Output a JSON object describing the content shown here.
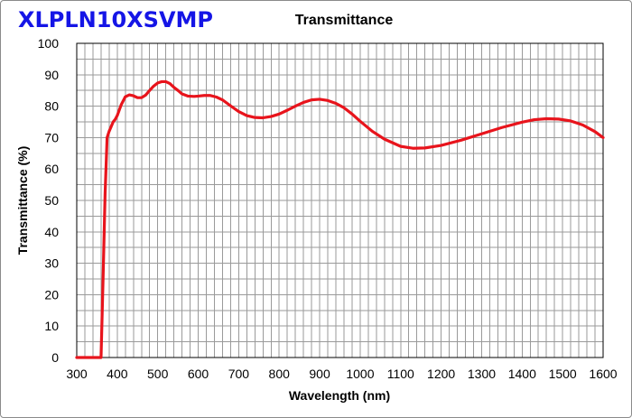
{
  "product_name": "XLPLN10XSVMP",
  "colors": {
    "product_name": "#1515e6",
    "series": "#e8141c",
    "grid": "#9a9a9a",
    "axis": "#000000"
  },
  "chart_data": {
    "type": "line",
    "title": "Transmittance",
    "xlabel": "Wavelength (nm)",
    "ylabel": "Transmittance (%)",
    "xlim": [
      300,
      1600
    ],
    "ylim": [
      0,
      100
    ],
    "xticks": [
      300,
      400,
      500,
      600,
      700,
      800,
      900,
      1000,
      1100,
      1200,
      1300,
      1400,
      1500,
      1600
    ],
    "yticks": [
      0,
      10,
      20,
      30,
      40,
      50,
      60,
      70,
      80,
      90,
      100
    ],
    "x_minor_step": 20,
    "y_minor_step": 5,
    "grid": true,
    "legend": "none",
    "series": [
      {
        "x": [
          300,
          360,
          365,
          370,
          375,
          380,
          385,
          390,
          395,
          400,
          410,
          420,
          430,
          440,
          450,
          460,
          470,
          480,
          490,
          500,
          510,
          520,
          530,
          540,
          550,
          560,
          575,
          590,
          600,
          615,
          630,
          645,
          660,
          680,
          700,
          720,
          740,
          760,
          780,
          800,
          820,
          840,
          860,
          880,
          900,
          920,
          940,
          960,
          980,
          1000,
          1030,
          1060,
          1100,
          1130,
          1160,
          1200,
          1250,
          1300,
          1350,
          1400,
          1430,
          1460,
          1490,
          1520,
          1550,
          1580,
          1600
        ],
        "y": [
          0,
          0,
          25,
          52,
          70,
          72,
          73.5,
          75,
          75.8,
          77,
          80.5,
          83,
          83.6,
          83.3,
          82.7,
          82.7,
          83.5,
          85,
          86.4,
          87.4,
          87.8,
          87.8,
          87.2,
          86,
          85,
          83.9,
          83.2,
          83.1,
          83.2,
          83.4,
          83.4,
          82.9,
          82,
          80.1,
          78.3,
          77,
          76.4,
          76.3,
          76.7,
          77.5,
          78.7,
          80,
          81.2,
          82,
          82.2,
          81.8,
          80.9,
          79.5,
          77.5,
          75.2,
          72,
          69.5,
          67.2,
          66.6,
          66.7,
          67.5,
          69.2,
          71.2,
          73.2,
          74.9,
          75.7,
          76,
          75.9,
          75.3,
          74,
          71.9,
          70
        ]
      }
    ]
  }
}
